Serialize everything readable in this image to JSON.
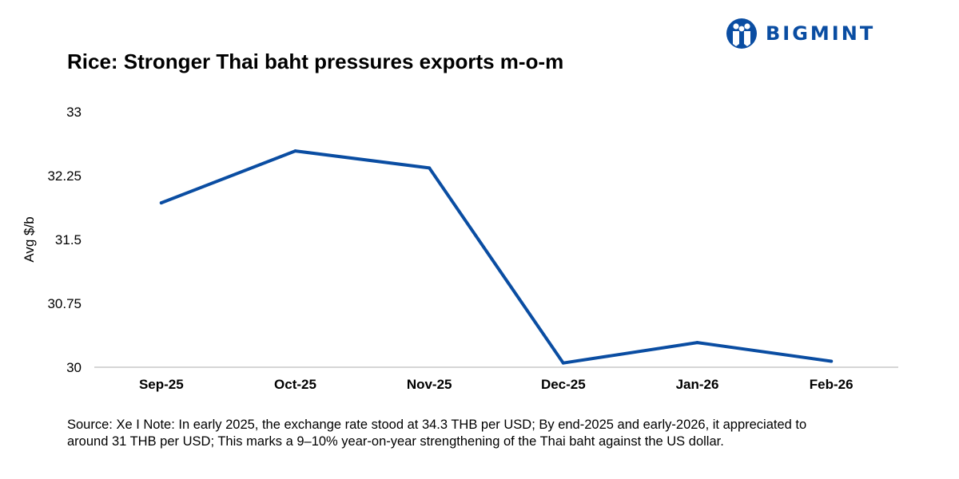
{
  "brand": {
    "name": "BIGMINT",
    "icon": "bigmint-people-logo-icon",
    "color": "#0a4da2"
  },
  "chart_data": {
    "type": "line",
    "title": "Rice: Stronger Thai baht pressures exports m-o-m",
    "xlabel": "",
    "ylabel": "Avg $/b",
    "categories": [
      "Sep-25",
      "Oct-25",
      "Nov-25",
      "Dec-25",
      "Jan-26",
      "Feb-26"
    ],
    "series": [
      {
        "values": [
          31.93,
          32.54,
          32.34,
          30.05,
          30.29,
          30.07
        ],
        "color": "#0a4da2"
      }
    ],
    "ylim": [
      30,
      33
    ],
    "yticks": [
      "30",
      "30.75",
      "31.5",
      "32.25",
      "33"
    ],
    "grid": false,
    "legend": "none"
  },
  "footnote": "Source: Xe I Note: In early 2025, the exchange rate stood at 34.3 THB per USD; By end-2025 and early-2026, it appreciated to around 31 THB per USD; This marks a 9–10% year-on-year strengthening of the Thai baht against the US dollar."
}
